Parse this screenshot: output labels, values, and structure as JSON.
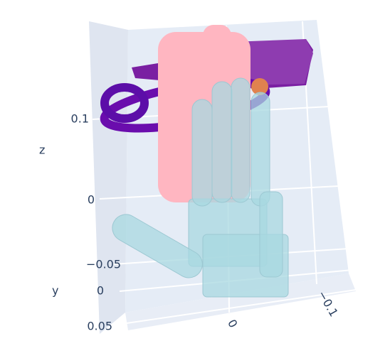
{
  "chart_data": {
    "type": "scatter3d",
    "zaxis": {
      "title": "z",
      "ticks": [
        0.1,
        0
      ]
    },
    "yaxis": {
      "title": "y",
      "ticks": [
        {
          "value": -0.05,
          "label": "−0.05"
        },
        0,
        0.05
      ]
    },
    "xaxis": {
      "ticks": [
        0,
        {
          "value": -0.1,
          "label": "−0.1"
        }
      ]
    }
  }
}
